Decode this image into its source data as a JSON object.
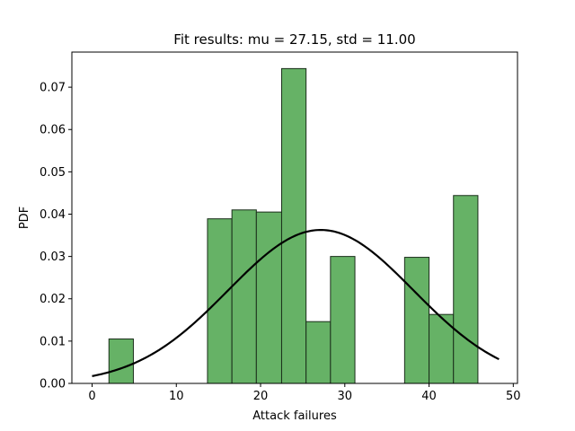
{
  "chart_data": {
    "type": "bar",
    "title": "Fit results: mu = 27.15,  std = 11.00",
    "xlabel": "Attack failures",
    "ylabel": "PDF",
    "xlim": [
      -2.4,
      50.5
    ],
    "ylim": [
      0,
      0.0783
    ],
    "xticks": [
      0,
      10,
      20,
      30,
      40,
      50
    ],
    "yticks": [
      0.0,
      0.01,
      0.02,
      0.03,
      0.04,
      0.05,
      0.06,
      0.07
    ],
    "bin_width": 2.9,
    "bins": [
      {
        "x0": 2.0,
        "x1": 4.9,
        "value": 0.0105
      },
      {
        "x0": 13.7,
        "x1": 16.6,
        "value": 0.0389
      },
      {
        "x0": 16.6,
        "x1": 19.5,
        "value": 0.041
      },
      {
        "x0": 19.5,
        "x1": 22.5,
        "value": 0.0405
      },
      {
        "x0": 22.5,
        "x1": 25.4,
        "value": 0.0744
      },
      {
        "x0": 25.4,
        "x1": 28.3,
        "value": 0.0146
      },
      {
        "x0": 28.3,
        "x1": 31.2,
        "value": 0.03
      },
      {
        "x0": 37.1,
        "x1": 40.0,
        "value": 0.0298
      },
      {
        "x0": 40.0,
        "x1": 42.9,
        "value": 0.0163
      },
      {
        "x0": 42.9,
        "x1": 45.8,
        "value": 0.0444
      }
    ],
    "fit": {
      "mu": 27.15,
      "std": 11.0,
      "x_range": [
        0,
        48.3
      ]
    },
    "colors": {
      "bar_fill": "#66b266",
      "bar_edge": "#1a2e1a",
      "fit_line": "#000000"
    },
    "grid": false
  }
}
